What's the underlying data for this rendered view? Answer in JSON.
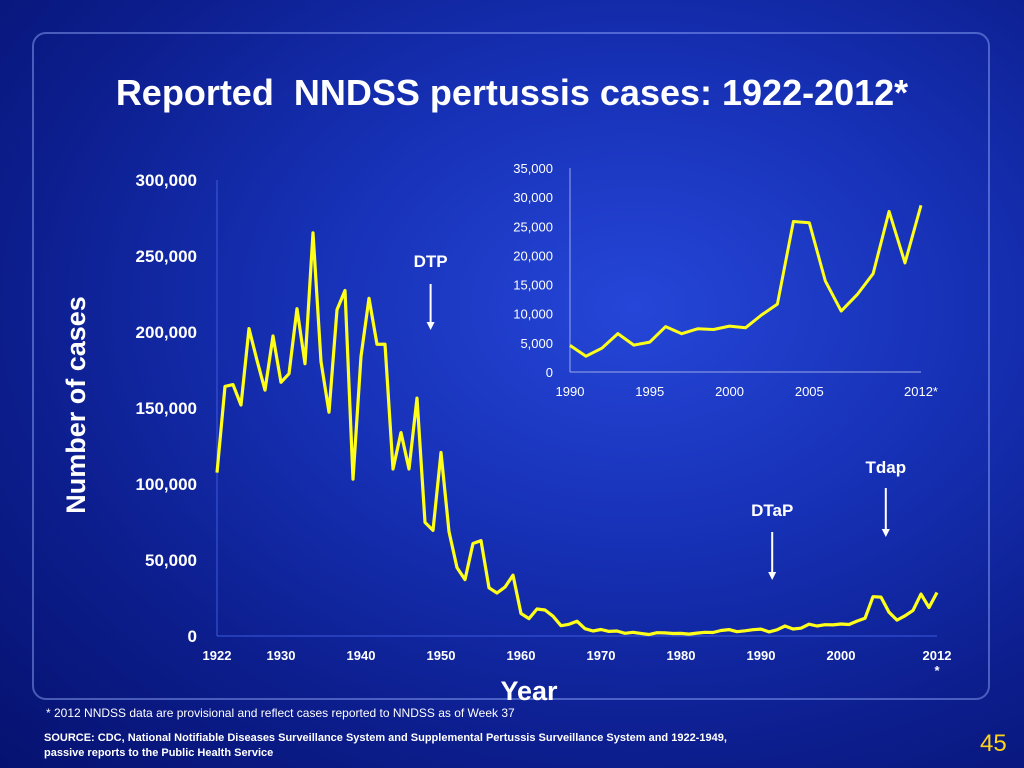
{
  "slide": {
    "title": "Reported  NNDSS pertussis cases: 1922-2012*",
    "footnote": "* 2012 NNDSS data are provisional and reflect cases reported to NNDSS as of  Week 37",
    "source_line1": "SOURCE: CDC, National Notifiable Diseases Surveillance System and Supplemental Pertussis Surveillance System and 1922-1949,",
    "source_line2": "passive reports to the Public Health Service",
    "slide_number": "45",
    "colors": {
      "line": "#ffff1a",
      "text": "#ffffff",
      "slide_number": "#ffd21a",
      "background": "#1630b4"
    }
  },
  "chart_data": [
    {
      "type": "line",
      "xlabel": "Year",
      "ylabel": "Number of cases",
      "ylim": [
        0,
        300000
      ],
      "xlim": [
        1922,
        2012
      ],
      "y_ticks": [
        {
          "v": 0,
          "label": "0"
        },
        {
          "v": 50000,
          "label": "50,000"
        },
        {
          "v": 100000,
          "label": "100,000"
        },
        {
          "v": 150000,
          "label": "150,000"
        },
        {
          "v": 200000,
          "label": "200,000"
        },
        {
          "v": 250000,
          "label": "250,000"
        },
        {
          "v": 300000,
          "label": "300,000"
        }
      ],
      "x_ticks": [
        {
          "v": 1922,
          "label": "1922"
        },
        {
          "v": 1930,
          "label": "1930"
        },
        {
          "v": 1940,
          "label": "1940"
        },
        {
          "v": 1950,
          "label": "1950"
        },
        {
          "v": 1960,
          "label": "1960"
        },
        {
          "v": 1970,
          "label": "1970"
        },
        {
          "v": 1980,
          "label": "1980"
        },
        {
          "v": 1990,
          "label": "1990"
        },
        {
          "v": 2000,
          "label": "2000"
        },
        {
          "v": 2012,
          "label": "2012"
        }
      ],
      "x_tick_note": "*",
      "annotations": [
        {
          "label": "DTP",
          "x": 1948.7
        },
        {
          "label": "DTaP",
          "x": 1991.4
        },
        {
          "label": "Tdap",
          "x": 2005.6
        }
      ],
      "series": [
        {
          "x": [
            1922,
            1923,
            1924,
            1925,
            1926,
            1927,
            1928,
            1929,
            1930,
            1931,
            1932,
            1933,
            1934,
            1935,
            1936,
            1937,
            1938,
            1939,
            1940,
            1941,
            1942,
            1943,
            1944,
            1945,
            1946,
            1947,
            1948,
            1949,
            1950,
            1951,
            1952,
            1953,
            1954,
            1955,
            1956,
            1957,
            1958,
            1959,
            1960,
            1961,
            1962,
            1963,
            1964,
            1965,
            1966,
            1967,
            1968,
            1969,
            1970,
            1971,
            1972,
            1973,
            1974,
            1975,
            1976,
            1977,
            1978,
            1979,
            1980,
            1981,
            1982,
            1983,
            1984,
            1985,
            1986,
            1987,
            1988,
            1989,
            1990,
            1991,
            1992,
            1993,
            1994,
            1995,
            1996,
            1997,
            1998,
            1999,
            2000,
            2001,
            2002,
            2003,
            2004,
            2005,
            2006,
            2007,
            2008,
            2009,
            2010,
            2011,
            2012
          ],
          "values": [
            107473,
            164191,
            165418,
            152003,
            202210,
            181411,
            161799,
            197371,
            166914,
            172559,
            215343,
            179135,
            265269,
            180518,
            147237,
            214652,
            227319,
            103188,
            183866,
            222202,
            191890,
            191943,
            109873,
            133792,
            109860,
            156517,
            74715,
            69479,
            120718,
            68687,
            45030,
            37129,
            60886,
            62786,
            31732,
            28295,
            32148,
            40005,
            14809,
            11468,
            17749,
            17135,
            13005,
            6799,
            7717,
            9718,
            4810,
            3285,
            4249,
            3036,
            3287,
            1759,
            2402,
            1738,
            1010,
            2177,
            2063,
            1623,
            1730,
            1248,
            1895,
            2463,
            2276,
            3589,
            4195,
            2823,
            3450,
            4157,
            4570,
            2719,
            4083,
            6586,
            4617,
            5137,
            7796,
            6564,
            7405,
            7288,
            7867,
            7580,
            9771,
            11647,
            25827,
            25616,
            15632,
            10454,
            13278,
            16858,
            27550,
            18719,
            28600
          ]
        }
      ]
    },
    {
      "type": "line",
      "ylim": [
        0,
        35000
      ],
      "xlim": [
        1990,
        2012
      ],
      "y_ticks": [
        {
          "v": 0,
          "label": "0"
        },
        {
          "v": 5000,
          "label": "5,000"
        },
        {
          "v": 10000,
          "label": "10,000"
        },
        {
          "v": 15000,
          "label": "15,000"
        },
        {
          "v": 20000,
          "label": "20,000"
        },
        {
          "v": 25000,
          "label": "25,000"
        },
        {
          "v": 30000,
          "label": "30,000"
        },
        {
          "v": 35000,
          "label": "35,000"
        }
      ],
      "x_ticks": [
        {
          "v": 1990,
          "label": "1990"
        },
        {
          "v": 1995,
          "label": "1995"
        },
        {
          "v": 2000,
          "label": "2000"
        },
        {
          "v": 2005,
          "label": "2005"
        },
        {
          "v": 2012,
          "label": "2012*"
        }
      ],
      "series": [
        {
          "x": [
            1990,
            1991,
            1992,
            1993,
            1994,
            1995,
            1996,
            1997,
            1998,
            1999,
            2000,
            2001,
            2002,
            2003,
            2004,
            2005,
            2006,
            2007,
            2008,
            2009,
            2010,
            2011,
            2012
          ],
          "values": [
            4570,
            2719,
            4083,
            6586,
            4617,
            5137,
            7796,
            6564,
            7405,
            7288,
            7867,
            7580,
            9771,
            11647,
            25827,
            25616,
            15632,
            10454,
            13278,
            16858,
            27550,
            18719,
            28600
          ]
        }
      ]
    }
  ]
}
